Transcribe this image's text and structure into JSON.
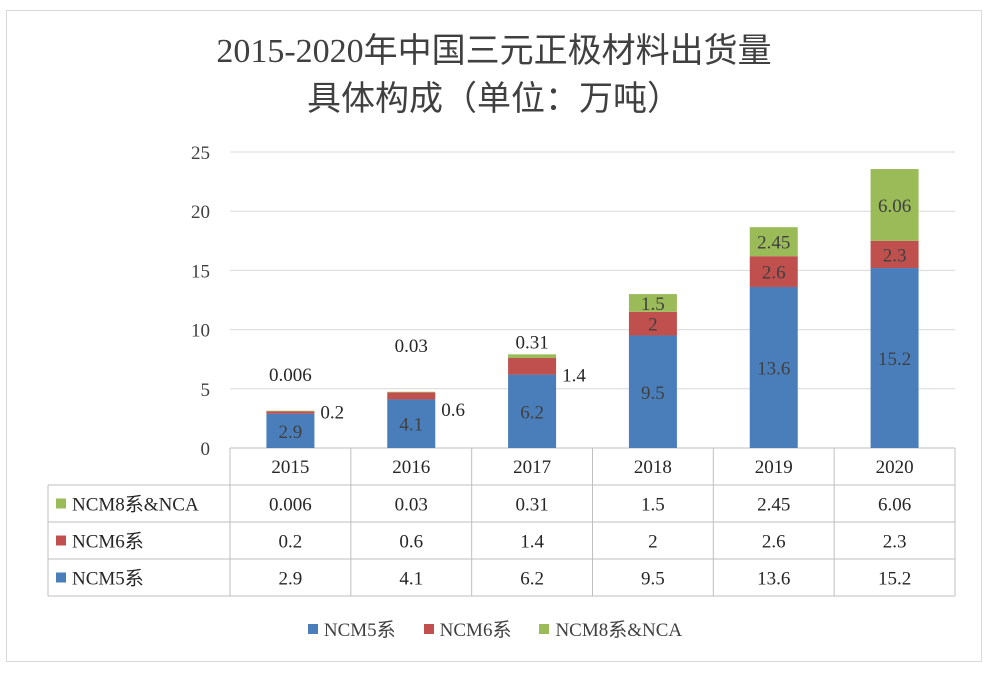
{
  "title_line1": "2015-2020年中国三元正极材料出货量",
  "title_line2": "具体构成（单位：万吨）",
  "colors": {
    "ncm5": "#4a7ebb",
    "ncm6": "#c0504d",
    "ncm8": "#9bbb59",
    "grid": "#d9d9d9"
  },
  "chart_data": {
    "type": "bar",
    "stacked": true,
    "title": "2015-2020年中国三元正极材料出货量具体构成（单位：万吨）",
    "categories": [
      "2015",
      "2016",
      "2017",
      "2018",
      "2019",
      "2020"
    ],
    "series": [
      {
        "name": "NCM5系",
        "values": [
          2.9,
          4.1,
          6.2,
          9.5,
          13.6,
          15.2
        ],
        "labels": [
          "2.9",
          "4.1",
          "6.2",
          "9.5",
          "13.6",
          "15.2"
        ]
      },
      {
        "name": "NCM6系",
        "values": [
          0.2,
          0.6,
          1.4,
          2,
          2.6,
          2.3
        ],
        "labels": [
          "0.2",
          "0.6",
          "1.4",
          "2",
          "2.6",
          "2.3"
        ]
      },
      {
        "name": "NCM8系&NCA",
        "values": [
          0.006,
          0.03,
          0.31,
          1.5,
          2.45,
          6.06
        ],
        "labels": [
          "0.006",
          "0.03",
          "0.31",
          "1.5",
          "2.45",
          "6.06"
        ]
      }
    ],
    "ylim": [
      0,
      25
    ],
    "yticks": [
      "0",
      "5",
      "10",
      "15",
      "20",
      "25"
    ],
    "grid": true,
    "legend": "bottom",
    "data_table": true
  },
  "legend": [
    {
      "label": "NCM5系"
    },
    {
      "label": "NCM6系"
    },
    {
      "label": "NCM8系&NCA"
    }
  ]
}
